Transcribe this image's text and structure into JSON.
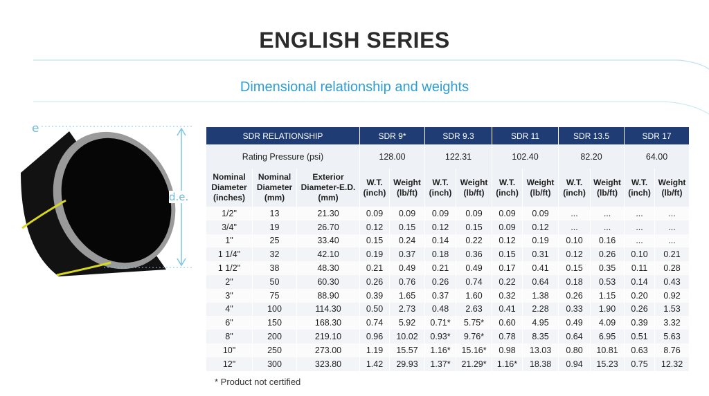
{
  "header": {
    "title": "ENGLISH SERIES",
    "subtitle": "Dimensional relationship and weights"
  },
  "figure": {
    "wall_label": "e",
    "diameter_label": "d.e."
  },
  "table": {
    "group_label": "SDR RELATIONSHIP",
    "groups": [
      "SDR 9*",
      "SDR 9.3",
      "SDR 11",
      "SDR 13.5",
      "SDR 17"
    ],
    "rating_label": "Rating Pressure (psi)",
    "ratings": [
      "128.00",
      "122.31",
      "102.40",
      "82.20",
      "64.00"
    ],
    "columns": [
      "Nominal Diameter (inches)",
      "Nominal Diameter (mm)",
      "Exterior Diameter-E.D. (mm)",
      "W.T. (inch)",
      "Weight (lb/ft)",
      "W.T. (inch)",
      "Weight (lb/ft)",
      "W.T. (inch)",
      "Weight (lb/ft)",
      "W.T. (inch)",
      "Weight (lb/ft)",
      "W.T. (inch)",
      "Weight (lb/ft)"
    ],
    "rows": [
      [
        "1/2\"",
        "13",
        "21.30",
        "0.09",
        "0.09",
        "0.09",
        "0.09",
        "0.09",
        "0.09",
        "...",
        "...",
        "...",
        "..."
      ],
      [
        "3/4\"",
        "19",
        "26.70",
        "0.12",
        "0.15",
        "0.12",
        "0.15",
        "0.09",
        "0.12",
        "...",
        "...",
        "...",
        "..."
      ],
      [
        "1\"",
        "25",
        "33.40",
        "0.15",
        "0.24",
        "0.14",
        "0.22",
        "0.12",
        "0.19",
        "0.10",
        "0.16",
        "...",
        "..."
      ],
      [
        "1 1/4\"",
        "32",
        "42.10",
        "0.19",
        "0.37",
        "0.18",
        "0.36",
        "0.15",
        "0.31",
        "0.12",
        "0.26",
        "0.10",
        "0.21"
      ],
      [
        "1 1/2\"",
        "38",
        "48.30",
        "0.21",
        "0.49",
        "0.21",
        "0.49",
        "0.17",
        "0.41",
        "0.15",
        "0.35",
        "0.11",
        "0.28"
      ],
      [
        "2\"",
        "50",
        "60.30",
        "0.26",
        "0.76",
        "0.26",
        "0.74",
        "0.22",
        "0.64",
        "0.18",
        "0.53",
        "0.14",
        "0.43"
      ],
      [
        "3\"",
        "75",
        "88.90",
        "0.39",
        "1.65",
        "0.37",
        "1.60",
        "0.32",
        "1.38",
        "0.26",
        "1.15",
        "0.20",
        "0.92"
      ],
      [
        "4\"",
        "100",
        "114.30",
        "0.50",
        "2.73",
        "0.48",
        "2.63",
        "0.41",
        "2.28",
        "0.33",
        "1.90",
        "0.26",
        "1.53"
      ],
      [
        "6\"",
        "150",
        "168.30",
        "0.74",
        "5.92",
        "0.71*",
        "5.75*",
        "0.60",
        "4.95",
        "0.49",
        "4.09",
        "0.39",
        "3.32"
      ],
      [
        "8\"",
        "200",
        "219.10",
        "0.96",
        "10.02",
        "0.93*",
        "9.76*",
        "0.78",
        "8.35",
        "0.64",
        "6.95",
        "0.51",
        "5.63"
      ],
      [
        "10\"",
        "250",
        "273.00",
        "1.19",
        "15.57",
        "1.16*",
        "15.16*",
        "0.98",
        "13.03",
        "0.80",
        "10.81",
        "0.63",
        "8.76"
      ],
      [
        "12\"",
        "300",
        "323.80",
        "1.42",
        "29.93",
        "1.37*",
        "21.29*",
        "1.16*",
        "18.38",
        "0.94",
        "15.23",
        "0.75",
        "12.32"
      ]
    ],
    "footnote": "* Product not certified"
  }
}
